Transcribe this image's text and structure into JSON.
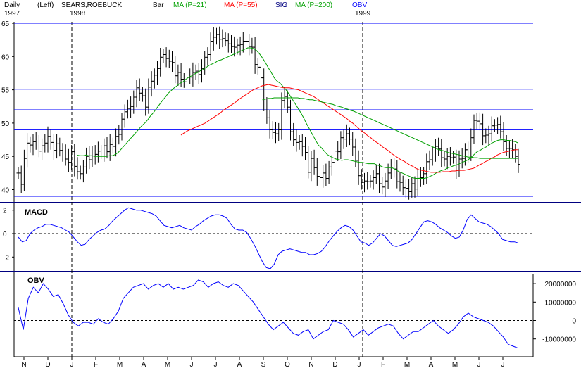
{
  "header": {
    "period": "Daily",
    "scale": "(Left)",
    "symbol": "SEARS,ROEBUCK",
    "chart_style": "Bar",
    "ma21_label": "MA (P=21)",
    "ma55_label": "MA (P=55)",
    "sig_label": "SIG",
    "ma200_label": "MA (P=200)",
    "obv_label": "OBV",
    "year_1997": "1997",
    "year_1998": "1998",
    "year_1999": "1999"
  },
  "colors": {
    "price": "#000000",
    "ma21": "#00a000",
    "ma55": "#ff0000",
    "ma200": "#00a000",
    "indicator": "#0000ff",
    "hlines": "#0000ff",
    "panel_border": "#000080"
  },
  "chart_data": [
    {
      "type": "bar",
      "name": "price",
      "x_label_type": "month",
      "ylim": [
        39,
        65
      ],
      "y_ticks": [
        40,
        45,
        50,
        55,
        60,
        65
      ],
      "h_lines": [
        39,
        49,
        52,
        55.1,
        65
      ],
      "series": [
        {
          "name": "price_close",
          "values": [
            42.5,
            40.8,
            44.7,
            47.0,
            46.7,
            47.2,
            47.3,
            45.8,
            46.6,
            47.0,
            48.0,
            47.1,
            45.9,
            46.9,
            45.9,
            45.5,
            44.6,
            44.1,
            45.7,
            43.5,
            42.7,
            42.4,
            43.4,
            45.0,
            44.5,
            45.5,
            45.3,
            45.8,
            45.5,
            46.6,
            45.7,
            46.8,
            46.5,
            48.0,
            48.3,
            50.6,
            51.7,
            52.2,
            52.5,
            53.9,
            55.3,
            54.5,
            54.1,
            52.4,
            55.4,
            56.3,
            57.2,
            58.2,
            59.9,
            60.3,
            59.7,
            59.3,
            59.1,
            57.1,
            57.6,
            56.6,
            56.2,
            56.9,
            56.9,
            57.6,
            57.8,
            57.3,
            58.2,
            59.9,
            60.3,
            62.3,
            62.9,
            63.3,
            62.6,
            62.7,
            62.4,
            61.9,
            61.5,
            61.4,
            61.7,
            61.8,
            62.3,
            62.3,
            61.5,
            61.4,
            58.8,
            58.4,
            56.8,
            53.0,
            50.8,
            49.0,
            48.6,
            48.4,
            49.0,
            53.4,
            54.0,
            52.4,
            48.7,
            47.5,
            47.1,
            47.2,
            46.5,
            45.6,
            42.6,
            44.7,
            43.3,
            42.0,
            41.8,
            42.5,
            41.7,
            43.4,
            44.1,
            45.8,
            45.7,
            47.8,
            47.6,
            48.4,
            47.6,
            46.4,
            44.4,
            42.1,
            41.1,
            41.3,
            41.2,
            41.3,
            41.8,
            42.4,
            40.9,
            40.4,
            41.3,
            42.5,
            43.7,
            43.1,
            41.2,
            41.1,
            40.3,
            40.2,
            39.7,
            40.9,
            40.1,
            41.9,
            41.8,
            42.4,
            44.2,
            44.5,
            45.5,
            46.5,
            46.1,
            44.8,
            44.6,
            45.0,
            44.8,
            44.9,
            42.9,
            44.6,
            44.7,
            46.0,
            45.5,
            47.8,
            50.4,
            50.3,
            49.9,
            48.1,
            48.2,
            48.4,
            49.6,
            49.7,
            49.8,
            48.7,
            47.2,
            46.2,
            46.2,
            46.0,
            45.0,
            43.8
          ]
        },
        {
          "name": "MA (P=21)",
          "values": [
            null,
            null,
            null,
            null,
            null,
            null,
            null,
            null,
            null,
            null,
            null,
            null,
            null,
            null,
            null,
            null,
            null,
            null,
            null,
            null,
            45.2,
            45.1,
            45.1,
            45.2,
            45.1,
            45.1,
            45.0,
            45.0,
            45.0,
            45.0,
            45.0,
            45.1,
            45.1,
            45.3,
            45.6,
            46.1,
            46.6,
            47.1,
            47.6,
            48.1,
            48.6,
            49.1,
            49.6,
            50.0,
            50.5,
            51.1,
            51.6,
            52.2,
            52.8,
            53.4,
            53.9,
            54.5,
            54.9,
            55.3,
            55.6,
            56.0,
            56.2,
            56.6,
            56.9,
            57.1,
            57.4,
            57.6,
            57.9,
            58.1,
            58.4,
            58.7,
            58.9,
            59.1,
            59.4,
            59.5,
            59.7,
            59.9,
            60.1,
            60.3,
            60.5,
            60.7,
            60.9,
            61.1,
            61.3,
            61.3,
            61.2,
            60.9,
            60.4,
            59.8,
            59.1,
            58.3,
            57.6,
            56.8,
            56.3,
            56.0,
            55.5,
            55.0,
            54.4,
            53.7,
            53.0,
            52.3,
            51.6,
            50.8,
            49.9,
            49.1,
            48.3,
            47.5,
            46.7,
            46.3,
            45.8,
            45.3,
            45.0,
            44.8,
            44.6,
            44.5,
            44.4,
            44.5,
            44.5,
            44.4,
            44.3,
            44.2,
            44.1,
            44.1,
            44.0,
            43.9,
            43.9,
            43.9,
            43.7,
            43.6,
            43.4,
            43.3,
            43.3,
            43.3,
            43.1,
            42.8,
            42.6,
            42.4,
            42.2,
            42.0,
            41.8,
            41.7,
            41.7,
            41.7,
            41.7,
            41.8,
            42.0,
            42.2,
            42.5,
            42.7,
            42.9,
            43.0,
            43.3,
            43.4,
            43.6,
            43.7,
            43.9,
            44.1,
            44.3,
            44.5,
            44.9,
            45.3,
            45.7,
            45.9,
            46.2,
            46.4,
            46.7,
            47.0,
            47.2,
            47.4,
            47.5,
            47.5,
            47.4,
            47.4,
            47.3,
            47.2,
            47.0
          ]
        },
        {
          "name": "MA (P=55)",
          "values": [
            null,
            null,
            null,
            null,
            null,
            null,
            null,
            null,
            null,
            null,
            null,
            null,
            null,
            null,
            null,
            null,
            null,
            null,
            null,
            null,
            null,
            null,
            null,
            null,
            null,
            null,
            null,
            null,
            null,
            null,
            null,
            null,
            null,
            null,
            null,
            null,
            null,
            null,
            null,
            null,
            null,
            null,
            null,
            null,
            null,
            null,
            null,
            null,
            null,
            null,
            null,
            null,
            null,
            null,
            48.2,
            48.5,
            48.8,
            49.0,
            49.2,
            49.4,
            49.6,
            49.8,
            50.0,
            50.3,
            50.6,
            50.9,
            51.2,
            51.5,
            51.9,
            52.2,
            52.5,
            52.8,
            53.1,
            53.5,
            53.8,
            54.1,
            54.4,
            54.7,
            55.0,
            55.2,
            55.4,
            55.6,
            55.7,
            55.8,
            55.7,
            55.6,
            55.5,
            55.4,
            55.3,
            55.3,
            55.3,
            55.2,
            55.1,
            55.0,
            54.8,
            54.6,
            54.4,
            54.2,
            54.0,
            53.7,
            53.4,
            53.1,
            52.8,
            52.5,
            52.2,
            51.9,
            51.6,
            51.3,
            51.0,
            50.7,
            50.3,
            50.0,
            49.6,
            49.2,
            48.8,
            48.5,
            48.1,
            47.8,
            47.4,
            47.1,
            46.8,
            46.4,
            46.1,
            45.8,
            45.4,
            45.1,
            44.8,
            44.5,
            44.3,
            44.0,
            43.7,
            43.5,
            43.2,
            43.0,
            42.9,
            42.8,
            42.7,
            42.6,
            42.6,
            42.6,
            42.6,
            42.7,
            42.7,
            42.7,
            42.8,
            42.8,
            42.9,
            42.9,
            42.9,
            43.0,
            43.1,
            43.2,
            43.4,
            43.7,
            43.9,
            44.2,
            44.4,
            44.7,
            44.9,
            45.2,
            45.4,
            45.6,
            45.7,
            45.8,
            45.9,
            46.0,
            46.0
          ]
        },
        {
          "name": "MA (P=200)",
          "values": [
            null,
            null,
            null,
            null,
            null,
            null,
            null,
            null,
            null,
            null,
            null,
            null,
            null,
            null,
            null,
            null,
            null,
            null,
            null,
            null,
            null,
            null,
            null,
            null,
            null,
            null,
            null,
            null,
            null,
            null,
            null,
            null,
            null,
            null,
            null,
            null,
            null,
            null,
            null,
            null,
            null,
            null,
            null,
            null,
            null,
            null,
            null,
            null,
            null,
            null,
            null,
            null,
            null,
            null,
            null,
            null,
            null,
            null,
            null,
            null,
            null,
            null,
            null,
            null,
            null,
            null,
            null,
            null,
            null,
            null,
            null,
            null,
            null,
            null,
            null,
            null,
            null,
            null,
            null,
            null,
            null,
            null,
            null,
            53.5,
            53.6,
            53.7,
            53.7,
            53.8,
            53.8,
            53.8,
            53.8,
            53.8,
            53.8,
            53.8,
            53.8,
            53.8,
            53.7,
            53.7,
            53.6,
            53.5,
            53.5,
            53.4,
            53.3,
            53.2,
            53.1,
            53.0,
            52.9,
            52.8,
            52.6,
            52.5,
            52.4,
            52.2,
            52.1,
            51.9,
            51.8,
            51.6,
            51.4,
            51.2,
            51.0,
            50.8,
            50.6,
            50.4,
            50.2,
            50.0,
            49.8,
            49.6,
            49.4,
            49.2,
            49.0,
            48.8,
            48.6,
            48.4,
            48.2,
            48.0,
            47.8,
            47.6,
            47.4,
            47.2,
            47.0,
            46.8,
            46.6,
            46.4,
            46.2,
            46.0,
            45.9,
            45.8,
            45.6,
            45.5,
            45.4,
            45.3,
            45.2,
            45.1,
            45.0,
            44.9,
            44.9,
            44.8,
            44.8,
            44.7,
            44.7,
            44.7,
            44.7,
            44.7,
            44.7,
            44.7,
            44.7,
            44.7,
            44.7,
            44.7,
            44.7,
            44.7,
            44.7
          ]
        }
      ]
    },
    {
      "type": "line",
      "name": "MACD",
      "title": "MACD",
      "ylim": [
        -3,
        2.4
      ],
      "y_ticks": [
        2,
        0,
        -2
      ],
      "zero_line": 0,
      "values": [
        -0.3,
        -0.7,
        -0.6,
        0.0,
        0.3,
        0.5,
        0.6,
        0.8,
        0.8,
        0.7,
        0.6,
        0.5,
        0.3,
        0.1,
        -0.3,
        -0.7,
        -1.0,
        -0.9,
        -0.5,
        -0.2,
        0.1,
        0.3,
        0.4,
        0.7,
        1.1,
        1.4,
        1.7,
        2.0,
        2.2,
        2.1,
        2.0,
        2.0,
        1.9,
        1.8,
        1.7,
        1.5,
        1.1,
        0.7,
        0.6,
        0.5,
        0.6,
        0.7,
        0.5,
        0.4,
        0.3,
        0.6,
        0.8,
        1.1,
        1.3,
        1.5,
        1.6,
        1.6,
        1.5,
        1.3,
        0.8,
        0.4,
        0.3,
        0.3,
        0.1,
        -0.4,
        -1.0,
        -1.7,
        -2.4,
        -2.9,
        -3.0,
        -2.6,
        -1.8,
        -1.5,
        -1.4,
        -1.3,
        -1.4,
        -1.5,
        -1.6,
        -1.6,
        -1.8,
        -1.8,
        -1.7,
        -1.5,
        -1.1,
        -0.6,
        -0.2,
        0.2,
        0.5,
        0.7,
        0.6,
        0.3,
        -0.2,
        -0.7,
        -0.8,
        -1.0,
        -0.8,
        -0.4,
        0.0,
        -0.2,
        -0.6,
        -1.0,
        -1.1,
        -1.0,
        -0.9,
        -0.8,
        -0.5,
        0.0,
        0.5,
        1.0,
        1.1,
        1.0,
        0.8,
        0.5,
        0.3,
        0.1,
        -0.2,
        -0.4,
        -0.3,
        0.3,
        1.2,
        1.6,
        1.3,
        1.0,
        0.9,
        0.8,
        0.6,
        0.3,
        0.0,
        -0.5,
        -0.6,
        -0.7,
        -0.7,
        -0.8
      ]
    },
    {
      "type": "line",
      "name": "OBV",
      "title": "OBV",
      "ylim": [
        -17000000,
        25000000
      ],
      "y_ticks": [
        20000000,
        10000000,
        0,
        -10000000
      ],
      "y_tick_labels": [
        "20000000",
        "10000000",
        "0",
        "-10000000"
      ],
      "zero_line": 0,
      "values": [
        7000000,
        -5000000,
        12000000,
        18000000,
        15000000,
        20000000,
        17000000,
        13000000,
        14000000,
        9000000,
        3000000,
        -1000000,
        -3000000,
        -1000000,
        -1000000,
        -2000000,
        1000000,
        -1000000,
        -2000000,
        1000000,
        5000000,
        12000000,
        15000000,
        18000000,
        19000000,
        20000000,
        17000000,
        19000000,
        20000000,
        18000000,
        20000000,
        17000000,
        18000000,
        17000000,
        18000000,
        19000000,
        22000000,
        21000000,
        18000000,
        20000000,
        21000000,
        19000000,
        18000000,
        20000000,
        19000000,
        16000000,
        13000000,
        10000000,
        6000000,
        2000000,
        -2000000,
        -5000000,
        -3000000,
        -1000000,
        -4000000,
        -7000000,
        -8000000,
        -6000000,
        -5000000,
        -10000000,
        -8000000,
        -6000000,
        -5000000,
        0,
        -1000000,
        -2000000,
        -5000000,
        -9000000,
        -7000000,
        -5000000,
        -8000000,
        -6000000,
        -4000000,
        -3000000,
        -2000000,
        -3000000,
        -7000000,
        -10000000,
        -8000000,
        -6000000,
        -6000000,
        -4000000,
        -2000000,
        0,
        -3000000,
        -5000000,
        -7000000,
        -5000000,
        -2000000,
        2000000,
        4000000,
        2000000,
        1000000,
        0,
        -1000000,
        -3000000,
        -6000000,
        -9000000,
        -13000000,
        -14000000,
        -15000000
      ]
    }
  ],
  "x_axis": {
    "month_labels": [
      "N",
      "D",
      "J",
      "F",
      "M",
      "A",
      "M",
      "J",
      "J",
      "A",
      "S",
      "O",
      "N",
      "D",
      "J",
      "F",
      "M",
      "A",
      "M",
      "J",
      "J"
    ]
  }
}
